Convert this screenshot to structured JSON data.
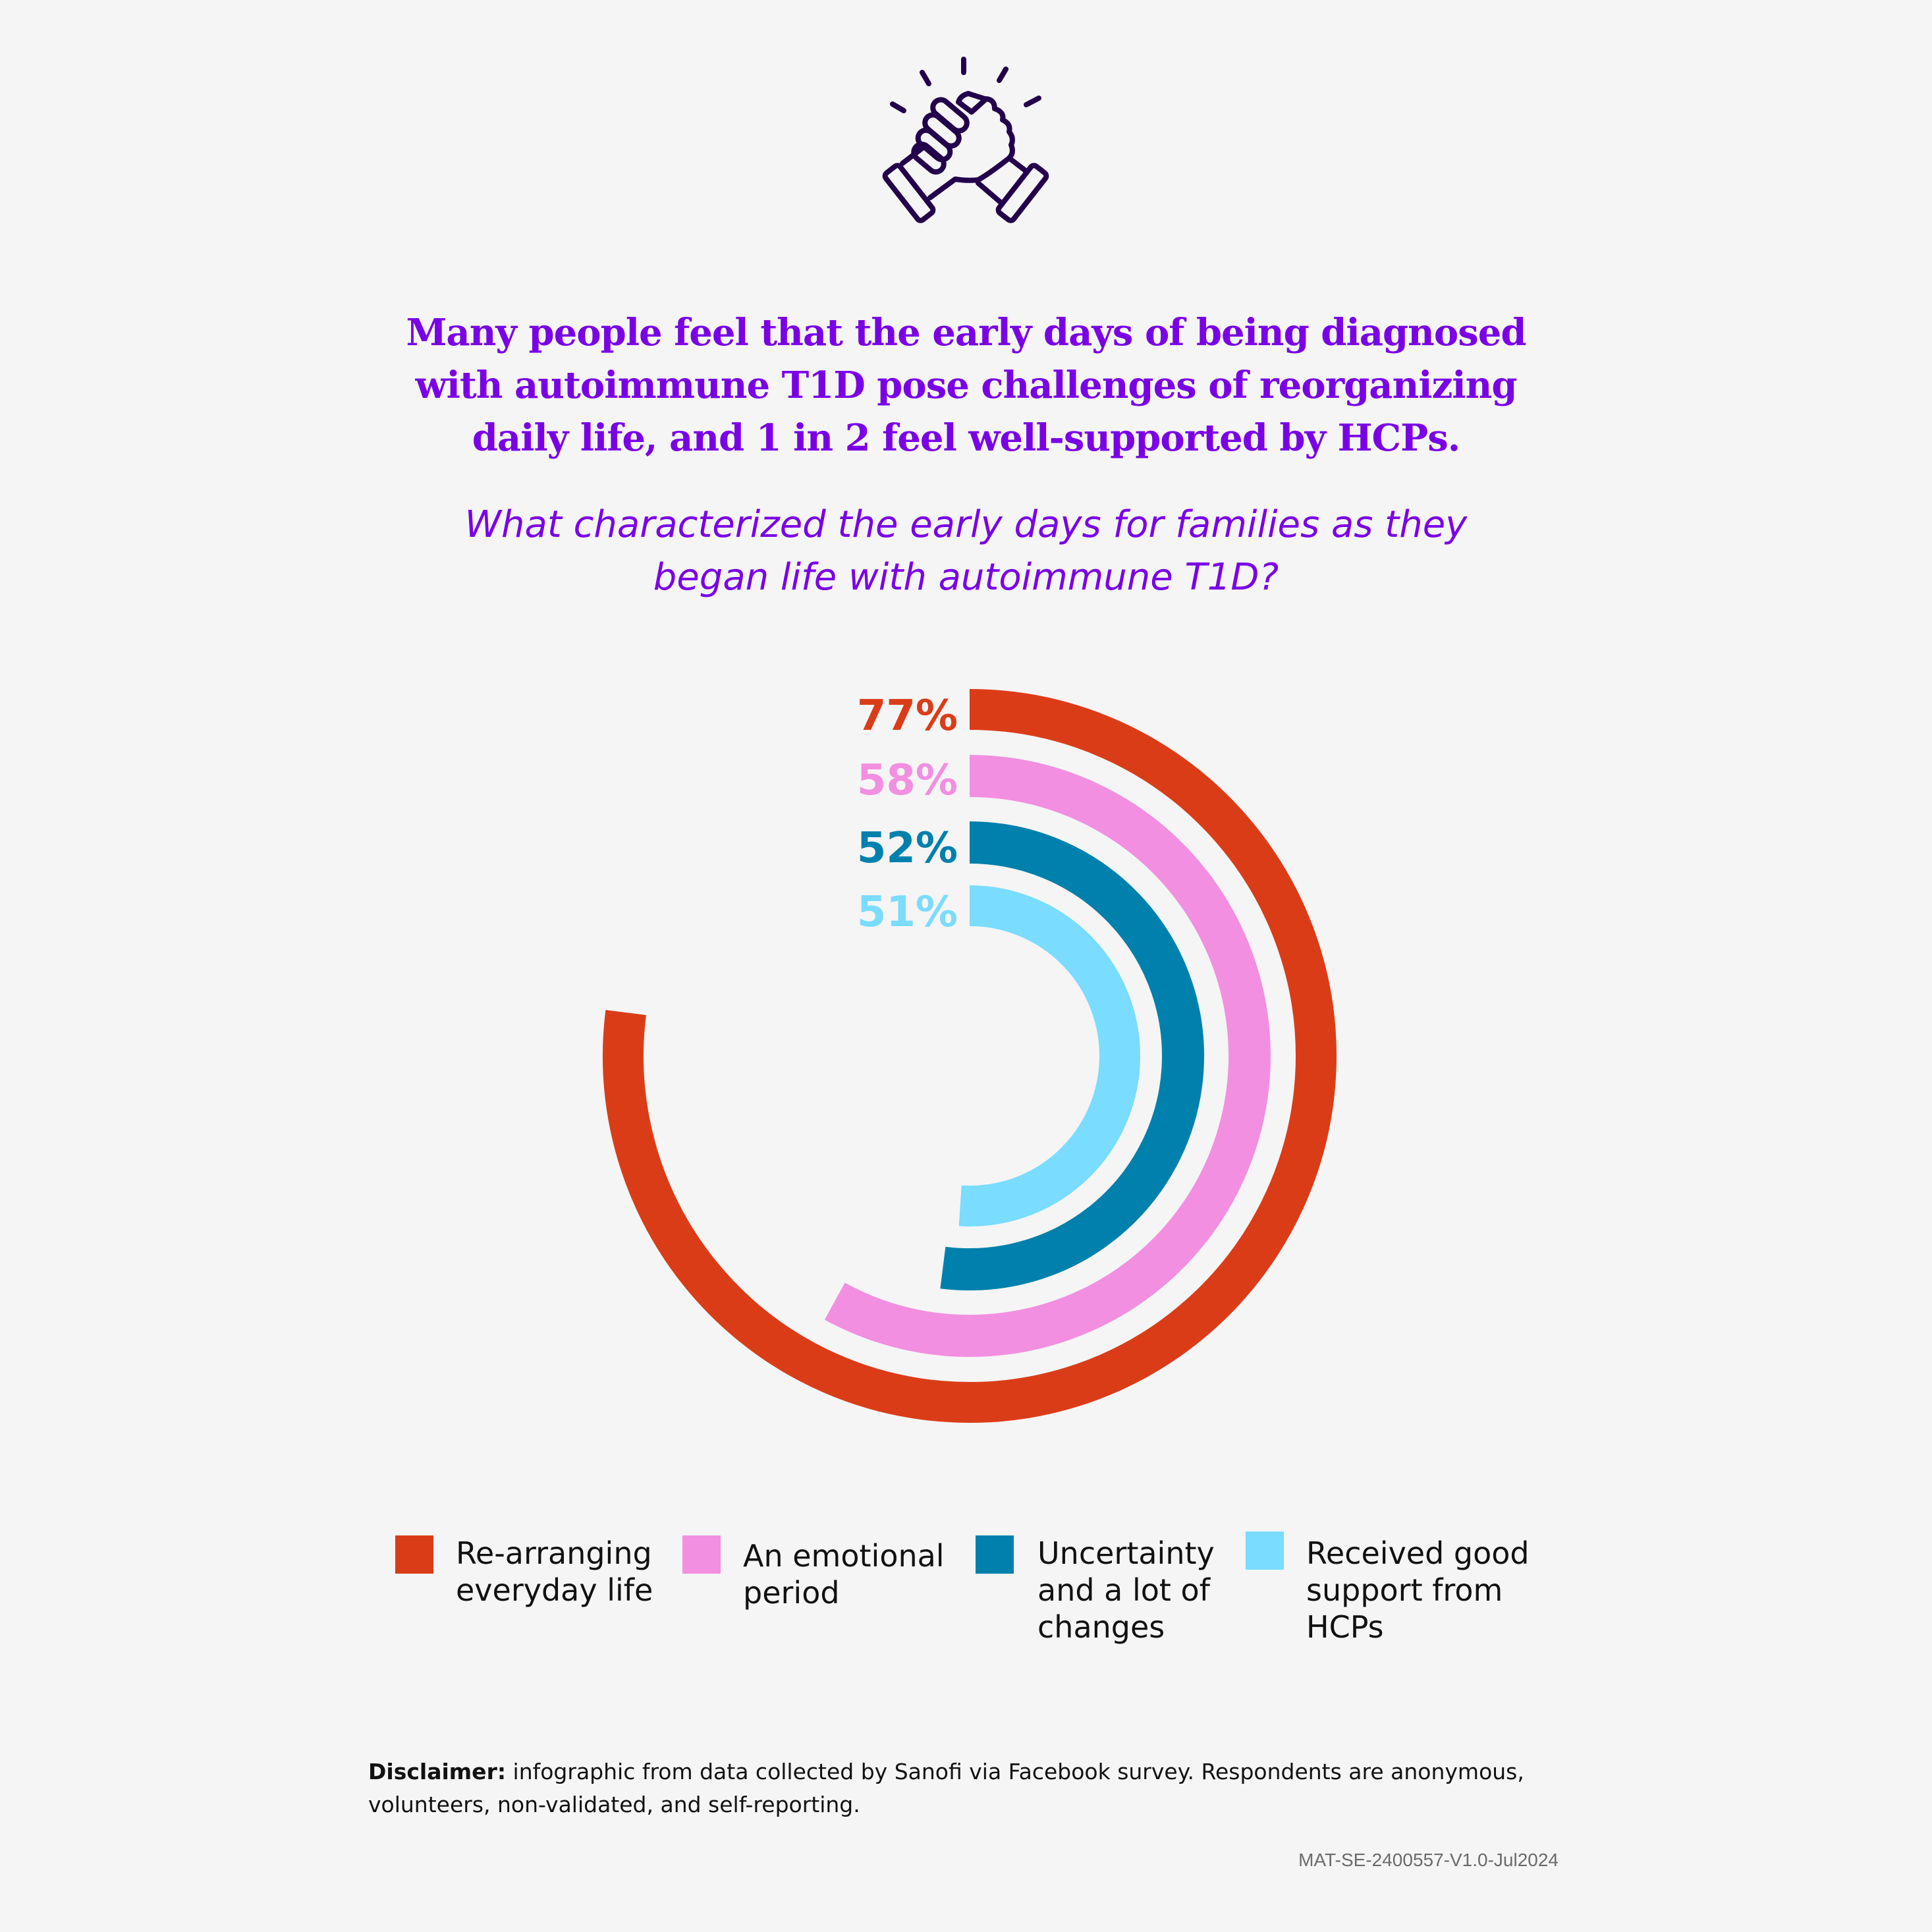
{
  "icon": "handshake-arm-wrestle-icon",
  "colors": {
    "title": "#7a00e6",
    "icon": "#23004c",
    "background": "#f5f5f5"
  },
  "title_lines": [
    "Many people feel that the early days of being diagnosed",
    "with autoimmune T1D pose challenges of reorganizing",
    "daily life, and 1 in 2 feel well-supported by HCPs."
  ],
  "subtitle_lines": [
    "What characterized the early days for families as they",
    "began life with autoimmune T1D?"
  ],
  "chart_data": {
    "type": "radial bar",
    "unit": "%",
    "range": [
      0,
      100
    ],
    "series": [
      {
        "name": "Re-arranging everyday life",
        "legend_lines": [
          "Re-arranging",
          "everyday life"
        ],
        "value": 77,
        "label": "77%",
        "color": "#db3c18"
      },
      {
        "name": "An emotional period",
        "legend_lines": [
          "An emotional",
          "period"
        ],
        "value": 58,
        "label": "58%",
        "color": "#f28fe0"
      },
      {
        "name": "Uncertainty and a lot of changes",
        "legend_lines": [
          "Uncertainty",
          "and a lot of",
          "changes"
        ],
        "value": 52,
        "label": "52%",
        "color": "#0080ac"
      },
      {
        "name": "Received good support from HCPs",
        "legend_lines": [
          "Received good",
          "support from",
          "HCPs"
        ],
        "value": 51,
        "label": "51%",
        "color": "#7adcff"
      }
    ],
    "legend_position": "bottom"
  },
  "disclaimer": {
    "label": "Disclaimer:",
    "text": " infographic from data collected by Sanofi via Facebook survey. Respondents are anonymous, volunteers, non-validated, and self-reporting."
  },
  "code": "MAT-SE-2400557-V1.0-Jul2024"
}
